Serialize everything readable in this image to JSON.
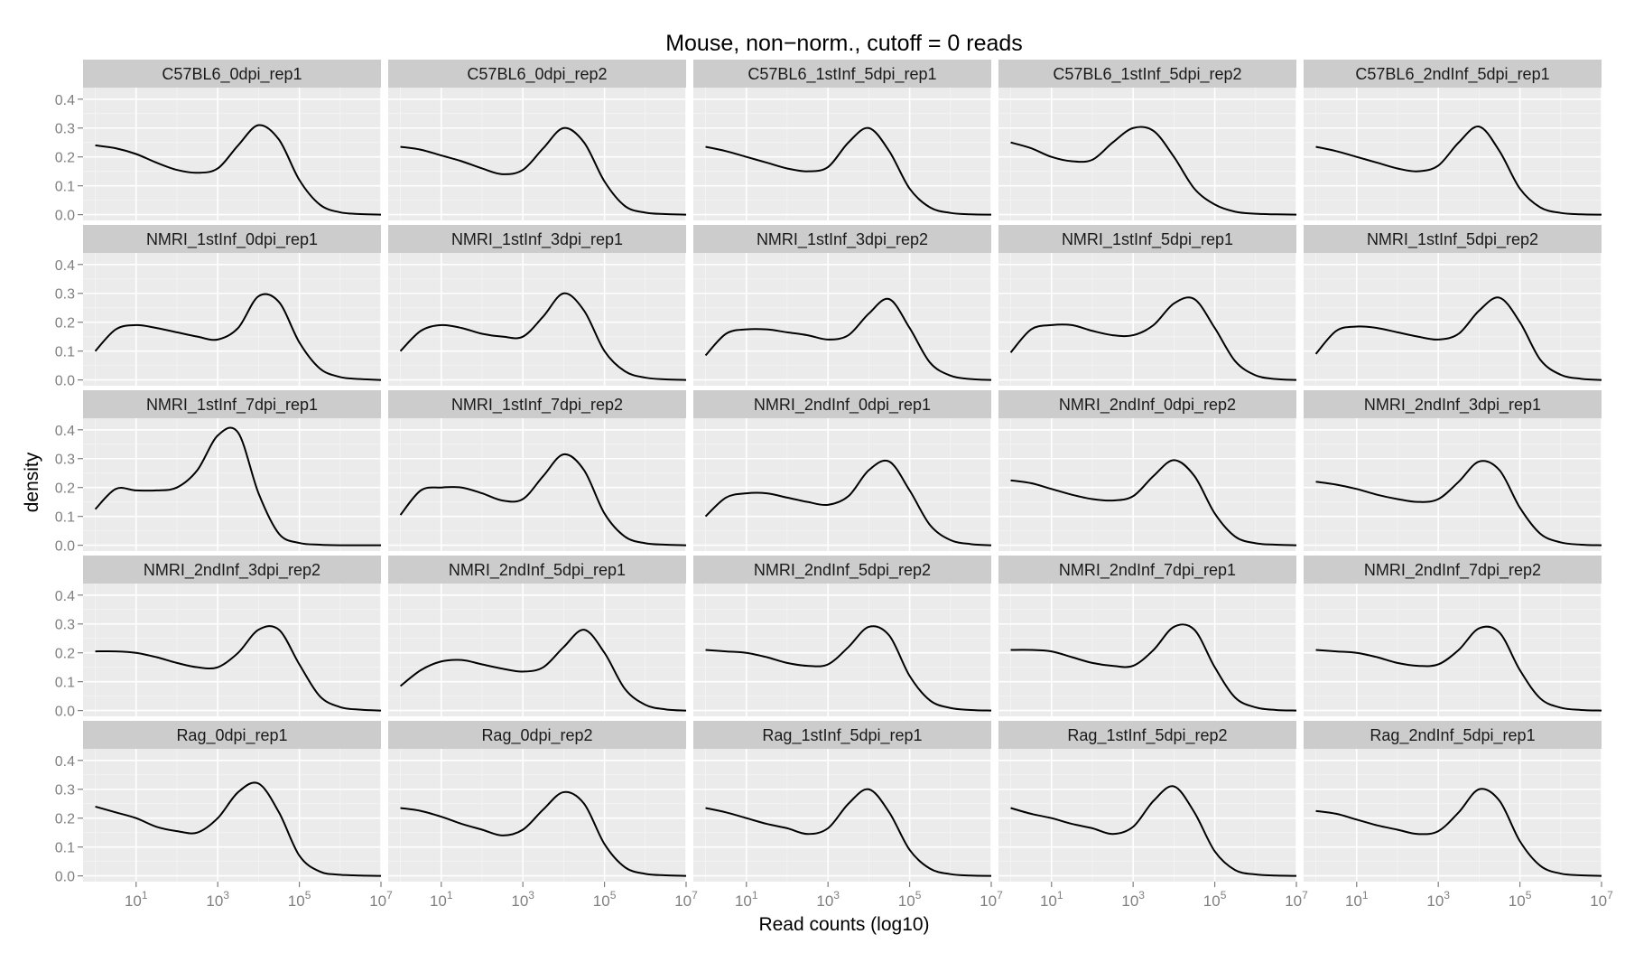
{
  "chart_data": {
    "type": "line",
    "facet_layout": "5 columns x 5 rows, shared axes",
    "title": "Mouse, non−norm., cutoff = 0 reads",
    "xlabel": "Read counts (log10)",
    "ylabel": "density",
    "x_scale": "log10",
    "xlim_log10": [
      -0.3,
      7
    ],
    "x_ticks": [
      {
        "log10": 1,
        "base": "10",
        "exp": "1"
      },
      {
        "log10": 3,
        "base": "10",
        "exp": "3"
      },
      {
        "log10": 5,
        "base": "10",
        "exp": "5"
      },
      {
        "log10": 7,
        "base": "10",
        "exp": "7"
      }
    ],
    "ylim": [
      -0.02,
      0.44
    ],
    "y_ticks": [
      "0.0",
      "0.1",
      "0.2",
      "0.3",
      "0.4"
    ],
    "grid": true,
    "legend": "none",
    "colors": {
      "panel_bg": "#ebebeb",
      "strip_bg": "#cccccc",
      "line": "#000000",
      "grid": "#ffffff",
      "axis_text": "#7f7f7f"
    },
    "x_log10_grid": [
      0,
      0.5,
      1,
      1.5,
      2,
      2.5,
      3,
      3.5,
      4,
      4.5,
      5,
      5.5,
      6,
      6.5,
      7
    ],
    "panels": [
      {
        "name": "C57BL6_0dpi_rep1",
        "y": [
          0.24,
          0.23,
          0.21,
          0.18,
          0.155,
          0.145,
          0.16,
          0.24,
          0.31,
          0.26,
          0.12,
          0.035,
          0.008,
          0.002,
          0.0
        ]
      },
      {
        "name": "C57BL6_0dpi_rep2",
        "y": [
          0.235,
          0.225,
          0.205,
          0.185,
          0.16,
          0.14,
          0.155,
          0.23,
          0.3,
          0.25,
          0.115,
          0.03,
          0.007,
          0.002,
          0.0
        ]
      },
      {
        "name": "C57BL6_1stInf_5dpi_rep1",
        "y": [
          0.235,
          0.22,
          0.2,
          0.18,
          0.16,
          0.15,
          0.165,
          0.25,
          0.3,
          0.22,
          0.09,
          0.025,
          0.006,
          0.001,
          0.0
        ]
      },
      {
        "name": "C57BL6_1stInf_5dpi_rep2",
        "y": [
          0.25,
          0.23,
          0.2,
          0.185,
          0.19,
          0.25,
          0.3,
          0.29,
          0.2,
          0.09,
          0.035,
          0.01,
          0.003,
          0.001,
          0.0
        ]
      },
      {
        "name": "C57BL6_2ndInf_5dpi_rep1",
        "y": [
          0.235,
          0.22,
          0.2,
          0.18,
          0.16,
          0.15,
          0.17,
          0.25,
          0.305,
          0.22,
          0.09,
          0.025,
          0.006,
          0.001,
          0.0
        ]
      },
      {
        "name": "NMRI_1stInf_0dpi_rep1",
        "y": [
          0.1,
          0.175,
          0.19,
          0.18,
          0.165,
          0.15,
          0.14,
          0.18,
          0.29,
          0.27,
          0.13,
          0.04,
          0.01,
          0.003,
          0.0
        ]
      },
      {
        "name": "NMRI_1stInf_3dpi_rep1",
        "y": [
          0.1,
          0.17,
          0.19,
          0.18,
          0.16,
          0.15,
          0.15,
          0.22,
          0.3,
          0.24,
          0.1,
          0.03,
          0.008,
          0.002,
          0.0
        ]
      },
      {
        "name": "NMRI_1stInf_3dpi_rep2",
        "y": [
          0.085,
          0.16,
          0.175,
          0.175,
          0.165,
          0.155,
          0.14,
          0.155,
          0.23,
          0.28,
          0.18,
          0.06,
          0.015,
          0.003,
          0.0
        ]
      },
      {
        "name": "NMRI_1stInf_5dpi_rep1",
        "y": [
          0.095,
          0.175,
          0.19,
          0.19,
          0.17,
          0.155,
          0.155,
          0.19,
          0.265,
          0.28,
          0.18,
          0.065,
          0.016,
          0.003,
          0.0
        ]
      },
      {
        "name": "NMRI_1stInf_5dpi_rep2",
        "y": [
          0.09,
          0.17,
          0.185,
          0.18,
          0.165,
          0.15,
          0.14,
          0.16,
          0.24,
          0.285,
          0.2,
          0.07,
          0.018,
          0.004,
          0.0
        ]
      },
      {
        "name": "NMRI_1stInf_7dpi_rep1",
        "y": [
          0.125,
          0.195,
          0.19,
          0.19,
          0.2,
          0.26,
          0.38,
          0.39,
          0.18,
          0.04,
          0.008,
          0.002,
          0.0,
          0.0,
          0.0
        ]
      },
      {
        "name": "NMRI_1stInf_7dpi_rep2",
        "y": [
          0.105,
          0.19,
          0.2,
          0.2,
          0.18,
          0.155,
          0.16,
          0.24,
          0.315,
          0.26,
          0.11,
          0.03,
          0.007,
          0.002,
          0.0
        ]
      },
      {
        "name": "NMRI_2ndInf_0dpi_rep1",
        "y": [
          0.1,
          0.165,
          0.18,
          0.18,
          0.165,
          0.15,
          0.14,
          0.17,
          0.26,
          0.29,
          0.19,
          0.07,
          0.018,
          0.004,
          0.0
        ]
      },
      {
        "name": "NMRI_2ndInf_0dpi_rep2",
        "y": [
          0.225,
          0.215,
          0.195,
          0.175,
          0.16,
          0.155,
          0.17,
          0.24,
          0.295,
          0.24,
          0.11,
          0.03,
          0.007,
          0.002,
          0.0
        ]
      },
      {
        "name": "NMRI_2ndInf_3dpi_rep1",
        "y": [
          0.22,
          0.21,
          0.195,
          0.175,
          0.16,
          0.15,
          0.16,
          0.22,
          0.29,
          0.26,
          0.13,
          0.04,
          0.01,
          0.002,
          0.0
        ]
      },
      {
        "name": "NMRI_2ndInf_3dpi_rep2",
        "y": [
          0.205,
          0.205,
          0.2,
          0.185,
          0.165,
          0.15,
          0.15,
          0.2,
          0.28,
          0.28,
          0.16,
          0.05,
          0.012,
          0.003,
          0.0
        ]
      },
      {
        "name": "NMRI_2ndInf_5dpi_rep1",
        "y": [
          0.085,
          0.14,
          0.17,
          0.175,
          0.16,
          0.145,
          0.135,
          0.15,
          0.22,
          0.28,
          0.2,
          0.075,
          0.02,
          0.004,
          0.0
        ]
      },
      {
        "name": "NMRI_2ndInf_5dpi_rep2",
        "y": [
          0.21,
          0.205,
          0.2,
          0.185,
          0.165,
          0.155,
          0.16,
          0.22,
          0.29,
          0.26,
          0.12,
          0.035,
          0.009,
          0.002,
          0.0
        ]
      },
      {
        "name": "NMRI_2ndInf_7dpi_rep1",
        "y": [
          0.21,
          0.21,
          0.205,
          0.185,
          0.165,
          0.155,
          0.155,
          0.21,
          0.29,
          0.28,
          0.15,
          0.045,
          0.011,
          0.002,
          0.0
        ]
      },
      {
        "name": "NMRI_2ndInf_7dpi_rep2",
        "y": [
          0.21,
          0.205,
          0.2,
          0.185,
          0.165,
          0.155,
          0.16,
          0.21,
          0.285,
          0.27,
          0.14,
          0.042,
          0.01,
          0.002,
          0.0
        ]
      },
      {
        "name": "Rag_0dpi_rep1",
        "y": [
          0.24,
          0.22,
          0.2,
          0.17,
          0.155,
          0.15,
          0.2,
          0.29,
          0.32,
          0.22,
          0.07,
          0.015,
          0.004,
          0.001,
          0.0
        ]
      },
      {
        "name": "Rag_0dpi_rep2",
        "y": [
          0.235,
          0.225,
          0.205,
          0.18,
          0.16,
          0.14,
          0.16,
          0.23,
          0.29,
          0.25,
          0.11,
          0.03,
          0.007,
          0.002,
          0.0
        ]
      },
      {
        "name": "Rag_1stInf_5dpi_rep1",
        "y": [
          0.235,
          0.22,
          0.2,
          0.18,
          0.165,
          0.145,
          0.165,
          0.25,
          0.3,
          0.22,
          0.09,
          0.025,
          0.006,
          0.001,
          0.0
        ]
      },
      {
        "name": "Rag_1stInf_5dpi_rep2",
        "y": [
          0.235,
          0.215,
          0.2,
          0.18,
          0.165,
          0.145,
          0.17,
          0.26,
          0.31,
          0.22,
          0.085,
          0.02,
          0.005,
          0.001,
          0.0
        ]
      },
      {
        "name": "Rag_2ndInf_5dpi_rep1",
        "y": [
          0.225,
          0.215,
          0.195,
          0.175,
          0.16,
          0.145,
          0.155,
          0.22,
          0.3,
          0.26,
          0.12,
          0.035,
          0.008,
          0.002,
          0.0
        ]
      }
    ]
  }
}
